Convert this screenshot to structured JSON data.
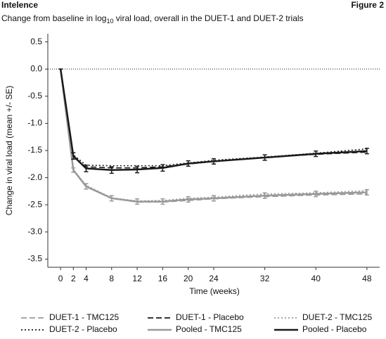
{
  "header": {
    "title": "Intelence",
    "figure": "Figure 2",
    "subtitle": [
      "Change from baseline in log",
      "10",
      " viral load, overall in the DUET-1 and DUET-2 trials"
    ]
  },
  "chart_data": {
    "type": "line",
    "x_label": "Time (weeks)",
    "y_label": "Change in viral load (mean +/- SE)",
    "x": [
      0,
      2,
      4,
      8,
      12,
      16,
      20,
      24,
      32,
      40,
      48
    ],
    "xlim": [
      -2,
      50
    ],
    "xticks": [
      0,
      2,
      4,
      8,
      12,
      16,
      20,
      24,
      32,
      40,
      48
    ],
    "ylim": [
      -3.65,
      0.65
    ],
    "yticks": [
      0.5,
      {
        "value": 0,
        "label": "0.0"
      },
      -0.5,
      {
        "value": -1,
        "label": "-1.0"
      },
      -1.5,
      {
        "value": -2,
        "label": "-2.0"
      },
      -2.5,
      {
        "value": -3,
        "label": "-3.0"
      },
      -3.5
    ],
    "reference_line": 0,
    "series": [
      {
        "name": "DUET-1 - TMC125",
        "color": "#999999",
        "style": "dashed",
        "values": [
          0,
          -1.87,
          -2.17,
          -2.38,
          -2.45,
          -2.45,
          -2.42,
          -2.39,
          -2.35,
          -2.32,
          -2.3
        ]
      },
      {
        "name": "DUET-1 - Placebo",
        "color": "#1a1a1a",
        "style": "dashed",
        "values": [
          0,
          -1.62,
          -1.8,
          -1.82,
          -1.82,
          -1.8,
          -1.75,
          -1.7,
          -1.63,
          -1.57,
          -1.53
        ]
      },
      {
        "name": "DUET-2 - TMC125",
        "color": "#999999",
        "style": "dotted",
        "values": [
          0,
          -1.85,
          -2.14,
          -2.37,
          -2.43,
          -2.42,
          -2.38,
          -2.36,
          -2.3,
          -2.28,
          -2.24
        ]
      },
      {
        "name": "DUET-2 - Placebo",
        "color": "#1a1a1a",
        "style": "dotted",
        "values": [
          0,
          -1.58,
          -1.77,
          -1.78,
          -1.78,
          -1.78,
          -1.73,
          -1.68,
          -1.62,
          -1.55,
          -1.47
        ]
      },
      {
        "name": "Pooled  - TMC125",
        "color": "#999999",
        "style": "solid",
        "values": [
          0,
          -1.86,
          -2.16,
          -2.38,
          -2.44,
          -2.44,
          -2.4,
          -2.38,
          -2.33,
          -2.3,
          -2.27
        ],
        "errors": [
          0,
          0.04,
          0.05,
          0.05,
          0.05,
          0.05,
          0.05,
          0.05,
          0.05,
          0.05,
          0.05
        ]
      },
      {
        "name": "Pooled  - Placebo",
        "color": "#1a1a1a",
        "style": "solid",
        "values": [
          0,
          -1.6,
          -1.83,
          -1.86,
          -1.85,
          -1.82,
          -1.74,
          -1.7,
          -1.63,
          -1.56,
          -1.51
        ],
        "errors": [
          0,
          0.06,
          0.06,
          0.06,
          0.06,
          0.06,
          0.05,
          0.05,
          0.05,
          0.05,
          0.05
        ]
      }
    ]
  }
}
